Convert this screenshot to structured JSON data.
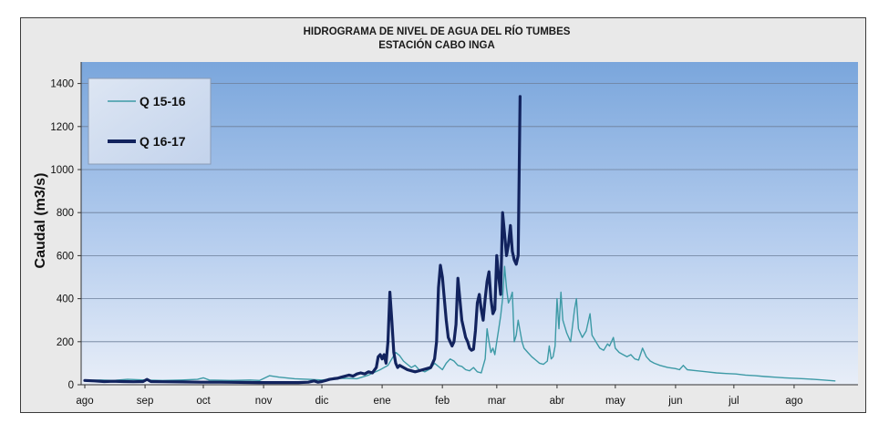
{
  "chart_data": {
    "type": "line",
    "title": "HIDROGRAMA DE NIVEL DE AGUA DEL RÍO TUMBES",
    "subtitle": "ESTACIÓN CABO INGA",
    "xlabel": "",
    "ylabel": "Caudal (m3/s)",
    "ylim": [
      0,
      1500
    ],
    "yticks": [
      0,
      200,
      400,
      600,
      800,
      1000,
      1200,
      1400
    ],
    "xlim": [
      0,
      396
    ],
    "xticks": [
      {
        "value": 0,
        "label": "ago"
      },
      {
        "value": 31,
        "label": "sep"
      },
      {
        "value": 61,
        "label": "oct"
      },
      {
        "value": 92,
        "label": "nov"
      },
      {
        "value": 122,
        "label": "dic"
      },
      {
        "value": 153,
        "label": "ene"
      },
      {
        "value": 184,
        "label": "feb"
      },
      {
        "value": 212,
        "label": "mar"
      },
      {
        "value": 243,
        "label": "abr"
      },
      {
        "value": 273,
        "label": "may"
      },
      {
        "value": 304,
        "label": "jun"
      },
      {
        "value": 334,
        "label": "jul"
      },
      {
        "value": 365,
        "label": "ago"
      }
    ],
    "grid": true,
    "legend_position": "top-left",
    "series": [
      {
        "name": "Q 15-16",
        "color": "#3d9aa6",
        "width": 1.4,
        "points": [
          [
            0,
            20
          ],
          [
            8,
            22
          ],
          [
            15,
            20
          ],
          [
            22,
            25
          ],
          [
            31,
            22
          ],
          [
            40,
            20
          ],
          [
            50,
            22
          ],
          [
            58,
            25
          ],
          [
            61,
            32
          ],
          [
            64,
            22
          ],
          [
            75,
            20
          ],
          [
            85,
            22
          ],
          [
            90,
            20
          ],
          [
            95,
            42
          ],
          [
            100,
            35
          ],
          [
            108,
            28
          ],
          [
            115,
            25
          ],
          [
            122,
            22
          ],
          [
            128,
            28
          ],
          [
            134,
            30
          ],
          [
            140,
            28
          ],
          [
            146,
            45
          ],
          [
            152,
            70
          ],
          [
            156,
            90
          ],
          [
            158,
            120
          ],
          [
            160,
            150
          ],
          [
            162,
            135
          ],
          [
            164,
            110
          ],
          [
            166,
            95
          ],
          [
            168,
            80
          ],
          [
            170,
            90
          ],
          [
            172,
            70
          ],
          [
            175,
            60
          ],
          [
            178,
            75
          ],
          [
            180,
            100
          ],
          [
            182,
            85
          ],
          [
            184,
            70
          ],
          [
            186,
            100
          ],
          [
            188,
            120
          ],
          [
            190,
            110
          ],
          [
            192,
            90
          ],
          [
            194,
            85
          ],
          [
            196,
            70
          ],
          [
            198,
            65
          ],
          [
            200,
            80
          ],
          [
            202,
            60
          ],
          [
            204,
            55
          ],
          [
            206,
            120
          ],
          [
            207,
            260
          ],
          [
            208,
            200
          ],
          [
            209,
            150
          ],
          [
            210,
            170
          ],
          [
            211,
            140
          ],
          [
            212,
            200
          ],
          [
            213,
            260
          ],
          [
            214,
            320
          ],
          [
            215,
            400
          ],
          [
            216,
            550
          ],
          [
            217,
            450
          ],
          [
            218,
            380
          ],
          [
            219,
            400
          ],
          [
            220,
            430
          ],
          [
            221,
            200
          ],
          [
            222,
            230
          ],
          [
            223,
            300
          ],
          [
            224,
            250
          ],
          [
            225,
            200
          ],
          [
            226,
            170
          ],
          [
            228,
            150
          ],
          [
            230,
            130
          ],
          [
            232,
            115
          ],
          [
            234,
            100
          ],
          [
            236,
            95
          ],
          [
            238,
            110
          ],
          [
            239,
            180
          ],
          [
            240,
            120
          ],
          [
            241,
            130
          ],
          [
            242,
            180
          ],
          [
            243,
            400
          ],
          [
            244,
            260
          ],
          [
            245,
            430
          ],
          [
            246,
            300
          ],
          [
            248,
            240
          ],
          [
            250,
            200
          ],
          [
            252,
            350
          ],
          [
            253,
            400
          ],
          [
            254,
            260
          ],
          [
            256,
            220
          ],
          [
            258,
            250
          ],
          [
            260,
            330
          ],
          [
            261,
            230
          ],
          [
            263,
            200
          ],
          [
            265,
            170
          ],
          [
            267,
            160
          ],
          [
            269,
            190
          ],
          [
            270,
            180
          ],
          [
            272,
            220
          ],
          [
            273,
            170
          ],
          [
            275,
            150
          ],
          [
            277,
            140
          ],
          [
            279,
            130
          ],
          [
            281,
            140
          ],
          [
            283,
            120
          ],
          [
            285,
            115
          ],
          [
            287,
            170
          ],
          [
            289,
            130
          ],
          [
            291,
            110
          ],
          [
            293,
            100
          ],
          [
            296,
            90
          ],
          [
            300,
            80
          ],
          [
            304,
            75
          ],
          [
            306,
            70
          ],
          [
            308,
            90
          ],
          [
            310,
            70
          ],
          [
            315,
            65
          ],
          [
            320,
            60
          ],
          [
            325,
            55
          ],
          [
            330,
            52
          ],
          [
            335,
            50
          ],
          [
            340,
            45
          ],
          [
            345,
            42
          ],
          [
            350,
            38
          ],
          [
            355,
            35
          ],
          [
            360,
            32
          ],
          [
            365,
            30
          ],
          [
            370,
            28
          ],
          [
            375,
            25
          ],
          [
            380,
            22
          ],
          [
            386,
            18
          ]
        ]
      },
      {
        "name": "Q 16-17",
        "color": "#12235e",
        "width": 3.2,
        "points": [
          [
            0,
            20
          ],
          [
            5,
            18
          ],
          [
            10,
            15
          ],
          [
            15,
            16
          ],
          [
            20,
            15
          ],
          [
            25,
            14
          ],
          [
            30,
            15
          ],
          [
            32,
            25
          ],
          [
            34,
            15
          ],
          [
            40,
            14
          ],
          [
            50,
            13
          ],
          [
            60,
            12
          ],
          [
            70,
            12
          ],
          [
            80,
            11
          ],
          [
            90,
            10
          ],
          [
            100,
            10
          ],
          [
            110,
            10
          ],
          [
            115,
            12
          ],
          [
            118,
            18
          ],
          [
            120,
            12
          ],
          [
            122,
            15
          ],
          [
            124,
            20
          ],
          [
            126,
            25
          ],
          [
            128,
            28
          ],
          [
            130,
            30
          ],
          [
            132,
            35
          ],
          [
            134,
            40
          ],
          [
            136,
            45
          ],
          [
            138,
            40
          ],
          [
            140,
            50
          ],
          [
            142,
            55
          ],
          [
            144,
            50
          ],
          [
            146,
            60
          ],
          [
            148,
            55
          ],
          [
            150,
            80
          ],
          [
            151,
            130
          ],
          [
            152,
            140
          ],
          [
            153,
            120
          ],
          [
            154,
            140
          ],
          [
            155,
            100
          ],
          [
            156,
            200
          ],
          [
            157,
            430
          ],
          [
            158,
            300
          ],
          [
            159,
            150
          ],
          [
            160,
            100
          ],
          [
            161,
            80
          ],
          [
            162,
            90
          ],
          [
            164,
            80
          ],
          [
            166,
            70
          ],
          [
            168,
            65
          ],
          [
            170,
            60
          ],
          [
            172,
            65
          ],
          [
            174,
            70
          ],
          [
            176,
            75
          ],
          [
            178,
            80
          ],
          [
            179,
            100
          ],
          [
            180,
            120
          ],
          [
            181,
            200
          ],
          [
            182,
            450
          ],
          [
            183,
            555
          ],
          [
            184,
            500
          ],
          [
            185,
            400
          ],
          [
            186,
            300
          ],
          [
            187,
            220
          ],
          [
            188,
            200
          ],
          [
            189,
            180
          ],
          [
            190,
            200
          ],
          [
            191,
            280
          ],
          [
            192,
            495
          ],
          [
            193,
            400
          ],
          [
            194,
            300
          ],
          [
            195,
            260
          ],
          [
            196,
            220
          ],
          [
            197,
            200
          ],
          [
            198,
            170
          ],
          [
            199,
            160
          ],
          [
            200,
            165
          ],
          [
            201,
            250
          ],
          [
            202,
            380
          ],
          [
            203,
            420
          ],
          [
            204,
            350
          ],
          [
            205,
            300
          ],
          [
            206,
            400
          ],
          [
            207,
            480
          ],
          [
            208,
            525
          ],
          [
            209,
            400
          ],
          [
            210,
            330
          ],
          [
            211,
            350
          ],
          [
            212,
            600
          ],
          [
            213,
            500
          ],
          [
            214,
            420
          ],
          [
            215,
            800
          ],
          [
            216,
            700
          ],
          [
            217,
            600
          ],
          [
            218,
            650
          ],
          [
            219,
            740
          ],
          [
            220,
            620
          ],
          [
            221,
            580
          ],
          [
            222,
            560
          ],
          [
            223,
            600
          ],
          [
            224,
            1340
          ]
        ]
      }
    ]
  }
}
